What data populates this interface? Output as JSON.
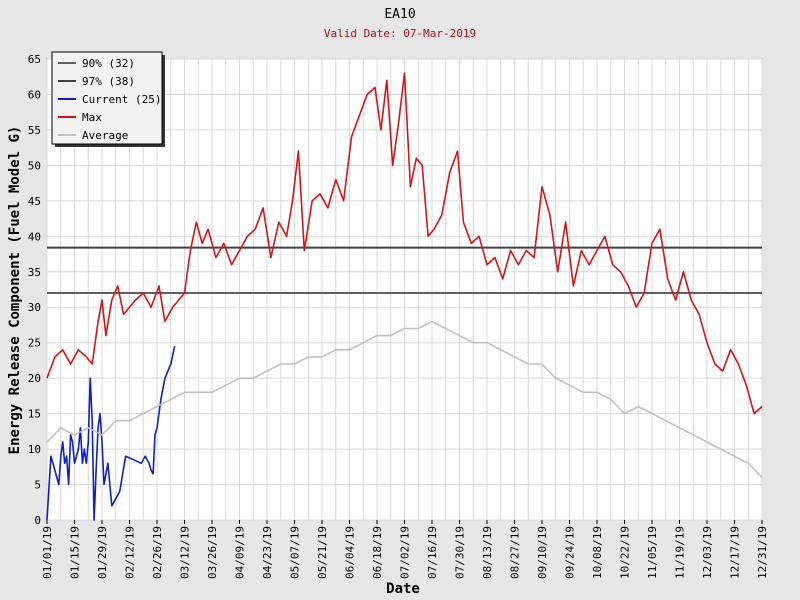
{
  "chart_data": {
    "type": "line",
    "title": "EA10",
    "subtitle": "Valid Date: 07-Mar-2019",
    "xlabel": "Date",
    "ylabel": "Energy Release Component (Fuel Model G)",
    "ylim": [
      0,
      65
    ],
    "yticks": [
      0,
      5,
      10,
      15,
      20,
      25,
      30,
      35,
      40,
      45,
      50,
      55,
      60,
      65
    ],
    "xticks": [
      "01/01/19",
      "01/15/19",
      "01/29/19",
      "02/12/19",
      "02/26/19",
      "03/12/19",
      "03/26/19",
      "04/09/19",
      "04/23/19",
      "05/07/19",
      "05/21/19",
      "06/04/19",
      "06/18/19",
      "07/02/19",
      "07/16/19",
      "07/30/19",
      "08/13/19",
      "08/27/19",
      "09/10/19",
      "09/24/19",
      "10/08/19",
      "10/22/19",
      "11/05/19",
      "11/19/19",
      "12/03/19",
      "12/17/19",
      "12/31/19"
    ],
    "grid": true,
    "legend_position": "top-left",
    "series": [
      {
        "name": "90% (32)",
        "type": "hline",
        "value": 32,
        "color": "#606060"
      },
      {
        "name": "97% (38)",
        "type": "hline",
        "value": 38.4,
        "color": "#404040"
      },
      {
        "name": "Current (25)",
        "color": "#0a1fd0",
        "x": [
          "01/01/19",
          "01/03/19",
          "01/05/19",
          "01/07/19",
          "01/08/19",
          "01/09/19",
          "01/10/19",
          "01/11/19",
          "01/12/19",
          "01/13/19",
          "01/14/19",
          "01/15/19",
          "01/16/19",
          "01/17/19",
          "01/18/19",
          "01/19/19",
          "01/20/19",
          "01/21/19",
          "01/22/19",
          "01/23/19",
          "01/24/19",
          "01/25/19",
          "01/26/19",
          "01/27/19",
          "01/28/19",
          "01/29/19",
          "01/30/19",
          "02/01/19",
          "02/03/19",
          "02/05/19",
          "02/07/19",
          "02/10/19",
          "02/14/19",
          "02/18/19",
          "02/20/19",
          "02/22/19",
          "02/23/19",
          "02/24/19",
          "02/25/19",
          "02/26/19",
          "02/28/19",
          "03/02/19",
          "03/05/19",
          "03/07/19"
        ],
        "y": [
          0,
          9,
          7,
          5,
          9,
          11,
          8,
          9,
          5,
          12,
          11,
          8,
          9,
          10,
          13,
          8,
          10,
          8,
          11,
          20,
          14,
          0,
          7,
          13,
          15,
          11,
          5,
          8,
          2,
          3,
          4,
          9,
          8.5,
          8,
          9,
          8,
          7,
          6.5,
          12,
          13,
          17,
          20,
          22,
          24.5
        ]
      },
      {
        "name": "Max",
        "color": "#dd1111",
        "x": [
          "01/01/19",
          "01/05/19",
          "01/09/19",
          "01/13/19",
          "01/17/19",
          "01/21/19",
          "01/24/19",
          "01/27/19",
          "01/29/19",
          "01/31/19",
          "02/03/19",
          "02/06/19",
          "02/09/19",
          "02/12/19",
          "02/15/19",
          "02/19/19",
          "02/23/19",
          "02/27/19",
          "03/02/19",
          "03/06/19",
          "03/09/19",
          "03/12/19",
          "03/15/19",
          "03/18/19",
          "03/21/19",
          "03/24/19",
          "03/28/19",
          "04/01/19",
          "04/05/19",
          "04/09/19",
          "04/13/19",
          "04/17/19",
          "04/21/19",
          "04/25/19",
          "04/29/19",
          "05/03/19",
          "05/06/19",
          "05/09/19",
          "05/12/19",
          "05/16/19",
          "05/20/19",
          "05/24/19",
          "05/28/19",
          "06/01/19",
          "06/05/19",
          "06/09/19",
          "06/13/19",
          "06/17/19",
          "06/20/19",
          "06/23/19",
          "06/26/19",
          "06/29/19",
          "07/02/19",
          "07/05/19",
          "07/08/19",
          "07/11/19",
          "07/14/19",
          "07/17/19",
          "07/21/19",
          "07/25/19",
          "07/29/19",
          "08/01/19",
          "08/05/19",
          "08/09/19",
          "08/13/19",
          "08/17/19",
          "08/21/19",
          "08/25/19",
          "08/29/19",
          "09/02/19",
          "09/06/19",
          "09/10/19",
          "09/14/19",
          "09/18/19",
          "09/22/19",
          "09/26/19",
          "09/30/19",
          "10/04/19",
          "10/08/19",
          "10/12/19",
          "10/16/19",
          "10/20/19",
          "10/24/19",
          "10/28/19",
          "11/01/19",
          "11/05/19",
          "11/09/19",
          "11/13/19",
          "11/17/19",
          "11/21/19",
          "11/25/19",
          "11/29/19",
          "12/03/19",
          "12/07/19",
          "12/11/19",
          "12/15/19",
          "12/19/19",
          "12/23/19",
          "12/27/19",
          "12/31/19"
        ],
        "y": [
          20,
          23,
          24,
          22,
          24,
          23,
          22,
          28,
          31,
          26,
          31,
          33,
          29,
          30,
          31,
          32,
          30,
          33,
          28,
          30,
          31,
          32,
          38,
          42,
          39,
          41,
          37,
          39,
          36,
          38,
          40,
          41,
          44,
          37,
          42,
          40,
          45,
          52,
          38,
          45,
          46,
          44,
          48,
          45,
          54,
          57,
          60,
          61,
          55,
          62,
          50,
          56,
          63,
          47,
          51,
          50,
          40,
          41,
          43,
          49,
          52,
          42,
          39,
          40,
          36,
          37,
          34,
          38,
          36,
          38,
          37,
          47,
          43,
          35,
          42,
          33,
          38,
          36,
          38,
          40,
          36,
          35,
          33,
          30,
          32,
          39,
          41,
          34,
          31,
          35,
          31,
          29,
          25,
          22,
          21,
          24,
          22,
          19,
          15,
          16
        ]
      },
      {
        "name": "Average",
        "color": "#c0c0c0",
        "x": [
          "01/01/19",
          "01/08/19",
          "01/15/19",
          "01/22/19",
          "01/29/19",
          "02/05/19",
          "02/12/19",
          "02/19/19",
          "02/26/19",
          "03/05/19",
          "03/12/19",
          "03/19/19",
          "03/26/19",
          "04/02/19",
          "04/09/19",
          "04/16/19",
          "04/23/19",
          "04/30/19",
          "05/07/19",
          "05/14/19",
          "05/21/19",
          "05/28/19",
          "06/04/19",
          "06/11/19",
          "06/18/19",
          "06/25/19",
          "07/02/19",
          "07/09/19",
          "07/16/19",
          "07/23/19",
          "07/30/19",
          "08/06/19",
          "08/13/19",
          "08/20/19",
          "08/27/19",
          "09/03/19",
          "09/10/19",
          "09/17/19",
          "09/24/19",
          "10/01/19",
          "10/08/19",
          "10/15/19",
          "10/22/19",
          "10/29/19",
          "11/05/19",
          "11/12/19",
          "11/19/19",
          "11/26/19",
          "12/03/19",
          "12/10/19",
          "12/17/19",
          "12/24/19",
          "12/31/19"
        ],
        "y": [
          11,
          13,
          12,
          13,
          12,
          14,
          14,
          15,
          16,
          17,
          18,
          18,
          18,
          19,
          20,
          20,
          21,
          22,
          22,
          23,
          23,
          24,
          24,
          25,
          26,
          26,
          27,
          27,
          28,
          27,
          26,
          25,
          25,
          24,
          23,
          22,
          22,
          20,
          19,
          18,
          18,
          17,
          15,
          16,
          15,
          14,
          13,
          12,
          11,
          10,
          9,
          8,
          6
        ]
      }
    ]
  }
}
